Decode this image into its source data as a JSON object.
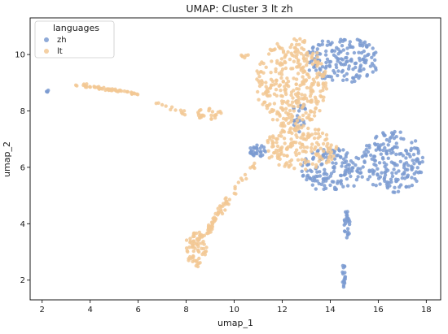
{
  "chart_data": {
    "type": "scatter",
    "title": "UMAP: Cluster 3 lt zh",
    "xlabel": "umap_1",
    "ylabel": "umap_2",
    "xlim": [
      1.5,
      18.6
    ],
    "ylim": [
      1.3,
      11.3
    ],
    "xticks": [
      2,
      4,
      6,
      8,
      10,
      12,
      14,
      16,
      18
    ],
    "yticks": [
      2,
      4,
      6,
      8,
      10
    ],
    "grid": false,
    "legend": {
      "title": "languages",
      "placement": "top-left"
    },
    "series": [
      {
        "name": "zh",
        "color": "#7b9bd1",
        "regions": [
          {
            "cx": 2.25,
            "cy": 8.7,
            "rx": 0.07,
            "ry": 0.05,
            "count": 4
          },
          {
            "cx": 11.0,
            "cy": 6.6,
            "rx": 0.35,
            "ry": 0.3,
            "count": 30
          },
          {
            "cx": 14.5,
            "cy": 9.8,
            "rx": 1.6,
            "ry": 0.8,
            "count": 170
          },
          {
            "cx": 16.6,
            "cy": 6.2,
            "rx": 1.3,
            "ry": 1.1,
            "count": 190
          },
          {
            "cx": 14.1,
            "cy": 5.9,
            "rx": 1.3,
            "ry": 0.8,
            "count": 150
          },
          {
            "cx": 12.7,
            "cy": 7.8,
            "rx": 0.3,
            "ry": 0.6,
            "count": 25
          },
          {
            "cx": 14.7,
            "cy": 4.0,
            "rx": 0.12,
            "ry": 0.6,
            "count": 25
          },
          {
            "cx": 14.55,
            "cy": 2.2,
            "rx": 0.08,
            "ry": 0.45,
            "count": 18
          }
        ]
      },
      {
        "name": "lt",
        "color": "#f2c894",
        "regions": [
          {
            "cx": 12.4,
            "cy": 9.0,
            "rx": 1.5,
            "ry": 1.6,
            "count": 330
          },
          {
            "cx": 12.8,
            "cy": 6.7,
            "rx": 1.5,
            "ry": 0.8,
            "count": 170
          },
          {
            "cx": 10.4,
            "cy": 10.0,
            "rx": 0.25,
            "ry": 0.12,
            "count": 6
          },
          {
            "cx": 8.4,
            "cy": 3.1,
            "rx": 0.45,
            "ry": 0.65,
            "count": 70
          },
          {
            "cx": 8.9,
            "cy": 7.9,
            "rx": 0.6,
            "ry": 0.2,
            "count": 25
          }
        ],
        "bands": [
          {
            "x0": 3.4,
            "y0": 8.95,
            "x1": 6.0,
            "y1": 8.6,
            "count": 55,
            "spread": 0.05
          },
          {
            "x0": 6.6,
            "y0": 8.35,
            "x1": 8.0,
            "y1": 7.9,
            "count": 12,
            "spread": 0.08
          },
          {
            "x0": 8.7,
            "y0": 3.5,
            "x1": 10.0,
            "y1": 5.2,
            "count": 60,
            "spread": 0.12
          },
          {
            "x0": 10.0,
            "y0": 5.2,
            "x1": 11.0,
            "y1": 6.2,
            "count": 12,
            "spread": 0.12
          }
        ]
      }
    ]
  }
}
